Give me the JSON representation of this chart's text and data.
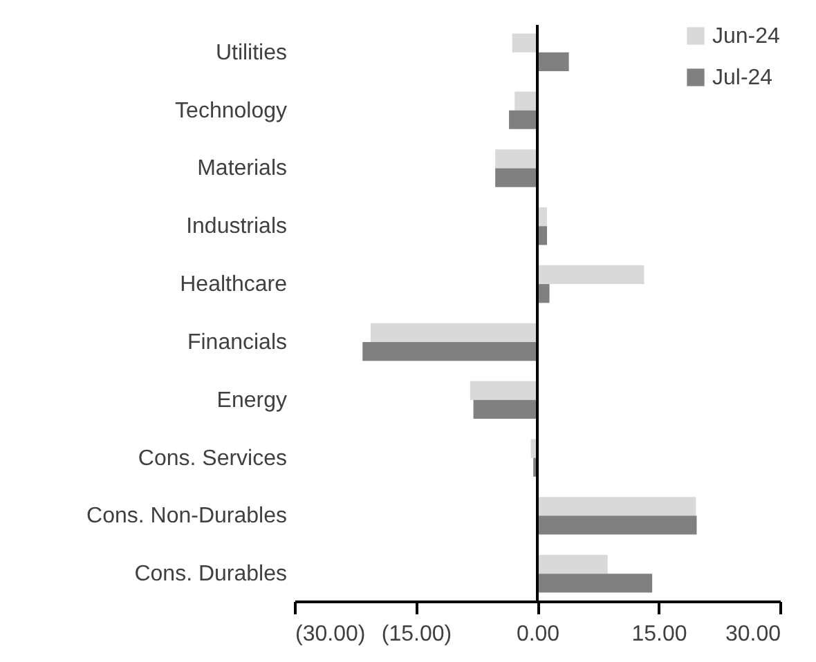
{
  "chart_data": {
    "type": "bar",
    "orientation": "horizontal",
    "categories": [
      "Utilities",
      "Technology",
      "Materials",
      "Industrials",
      "Healthcare",
      "Financials",
      "Energy",
      "Cons. Services",
      "Cons. Non-Durables",
      "Cons. Durables"
    ],
    "series": [
      {
        "name": "Jun-24",
        "color": "#d9d9d9",
        "values": [
          -3.1,
          -2.8,
          -5.2,
          1.2,
          13.2,
          -20.6,
          -8.3,
          -0.8,
          19.6,
          8.7
        ]
      },
      {
        "name": "Jul-24",
        "color": "#808080",
        "values": [
          3.9,
          -3.5,
          -5.2,
          1.2,
          1.5,
          -21.6,
          -7.9,
          -0.5,
          19.7,
          14.2
        ]
      }
    ],
    "xlim": [
      -30,
      30
    ],
    "xticks": [
      {
        "value": -30,
        "label": "(30.00)"
      },
      {
        "value": -15,
        "label": "(15.00)"
      },
      {
        "value": 0,
        "label": "0.00"
      },
      {
        "value": 15,
        "label": "15.00"
      },
      {
        "value": 30,
        "label": "30.00"
      }
    ],
    "legend": "top right"
  }
}
